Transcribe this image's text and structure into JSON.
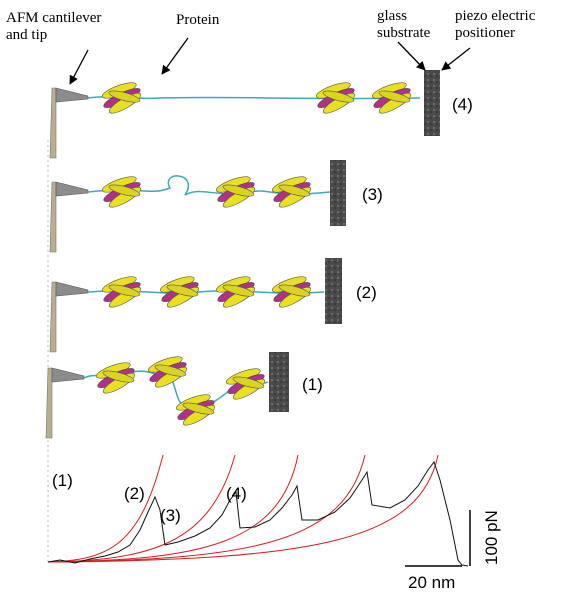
{
  "labels": {
    "cantilever": [
      "AFM cantilever",
      "and tip"
    ],
    "protein": "Protein",
    "substrate": [
      "glass",
      "substrate"
    ],
    "piezo": [
      "piezo electric",
      "positioner"
    ]
  },
  "stages": [
    "(4)",
    "(3)",
    "(2)",
    "(1)"
  ],
  "trace": {
    "peak_labels": [
      "(1)",
      "(2)",
      "(3)",
      "(4)"
    ],
    "scale_x": "20 nm",
    "scale_y": "100 pN"
  }
}
